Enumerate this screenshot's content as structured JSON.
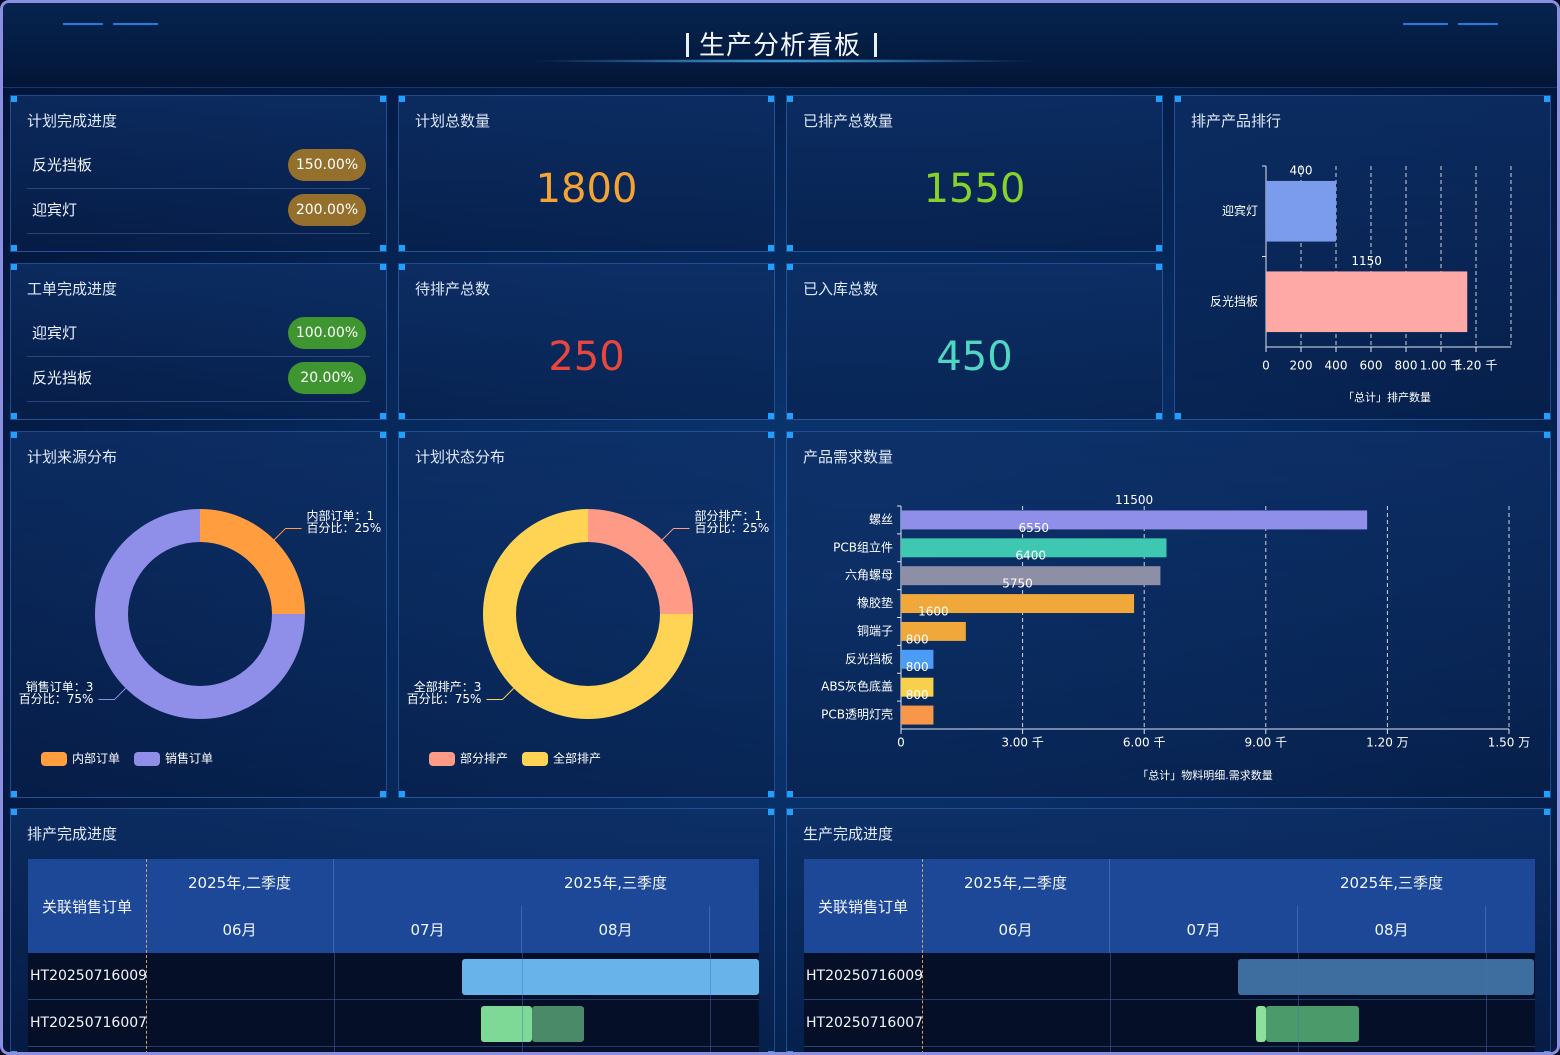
{
  "header": {
    "title": "生产分析看板"
  },
  "plan_progress": {
    "title": "计划完成进度",
    "rows": [
      {
        "name": "反光挡板",
        "value": "150.00%",
        "color": "#94702c"
      },
      {
        "name": "迎宾灯",
        "value": "200.00%",
        "color": "#94702c"
      }
    ]
  },
  "order_progress": {
    "title": "工单完成进度",
    "rows": [
      {
        "name": "迎宾灯",
        "value": "100.00%",
        "color": "#3f952f"
      },
      {
        "name": "反光挡板",
        "value": "20.00%",
        "color": "#3f952f"
      }
    ]
  },
  "kpis": [
    {
      "title": "计划总数量",
      "value": 1800,
      "color": "#f5a332"
    },
    {
      "title": "已排产总数量",
      "value": 1550,
      "color": "#86d12c"
    },
    {
      "title": "待排产总数",
      "value": 250,
      "color": "#e8463e"
    },
    {
      "title": "已入库总数",
      "value": 450,
      "color": "#52d6c4"
    }
  ],
  "chart_data": [
    {
      "type": "bar",
      "orientation": "horizontal",
      "title": "排产产品排行",
      "categories": [
        "迎宾灯",
        "反光挡板"
      ],
      "values": [
        400,
        1150
      ],
      "colors": [
        "#7b9bed",
        "#ffa9a6"
      ],
      "xlim": [
        0,
        1400
      ],
      "xticks": [
        0,
        200,
        400,
        600,
        800,
        {
          "value": 1000,
          "label": "1.00 千"
        },
        {
          "value": 1200,
          "label": "1.20 千"
        }
      ],
      "xlabel": "「总计」排产数量",
      "grid": true
    },
    {
      "type": "pie",
      "title": "计划来源分布",
      "categories": [
        "内部订单",
        "销售订单"
      ],
      "values": [
        1,
        3
      ],
      "value_labels": [
        "内部订单：1",
        "销售订单：3"
      ],
      "percent_labels": [
        "百分比：25%",
        "百分比：75%"
      ],
      "colors": [
        "#ff9d3f",
        "#8f8ee9"
      ],
      "legend": "bottom-left"
    },
    {
      "type": "pie",
      "title": "计划状态分布",
      "categories": [
        "部分排产",
        "全部排产"
      ],
      "values": [
        1,
        3
      ],
      "value_labels": [
        "部分排产：1",
        "全部排产：3"
      ],
      "percent_labels": [
        "百分比：25%",
        "百分比：75%"
      ],
      "colors": [
        "#ff9a86",
        "#ffd455"
      ],
      "legend": "bottom-left"
    },
    {
      "type": "bar",
      "orientation": "horizontal",
      "title": "产品需求数量",
      "categories": [
        "螺丝",
        "PCB组立件",
        "六角螺母",
        "橡胶垫",
        "铜端子",
        "反光挡板",
        "ABS灰色底盖",
        "PCB透明灯壳"
      ],
      "values": [
        11500,
        6550,
        6400,
        5750,
        1600,
        800,
        800,
        800
      ],
      "colors": [
        "#8f8ee9",
        "#3ec8b2",
        "#8d8fa6",
        "#f0a83a",
        "#f0a83a",
        "#4c9bf6",
        "#f8d04c",
        "#f8974a"
      ],
      "xlim": [
        0,
        15000
      ],
      "xticks": [
        0,
        {
          "value": 3000,
          "label": "3.00 千"
        },
        {
          "value": 6000,
          "label": "6.00 千"
        },
        {
          "value": 9000,
          "label": "9.00 千"
        },
        {
          "value": 12000,
          "label": "1.20 万"
        },
        {
          "value": 15000,
          "label": "1.50 万"
        }
      ],
      "xlabel": "「总计」物料明细.需求数量",
      "grid": true
    }
  ],
  "gantt": [
    {
      "title": "排产完成进度",
      "header_label": "关联销售订单",
      "quarters": [
        "2025年,二季度",
        "2025年,三季度"
      ],
      "months": [
        "06月",
        "07月",
        "08月"
      ],
      "rows": [
        "HT20250716009",
        "HT20250716007"
      ]
    },
    {
      "title": "生产完成进度",
      "header_label": "关联销售订单",
      "quarters": [
        "2025年,二季度",
        "2025年,三季度"
      ],
      "months": [
        "06月",
        "07月",
        "08月"
      ],
      "rows": [
        "HT20250716009",
        "HT20250716007"
      ]
    }
  ]
}
